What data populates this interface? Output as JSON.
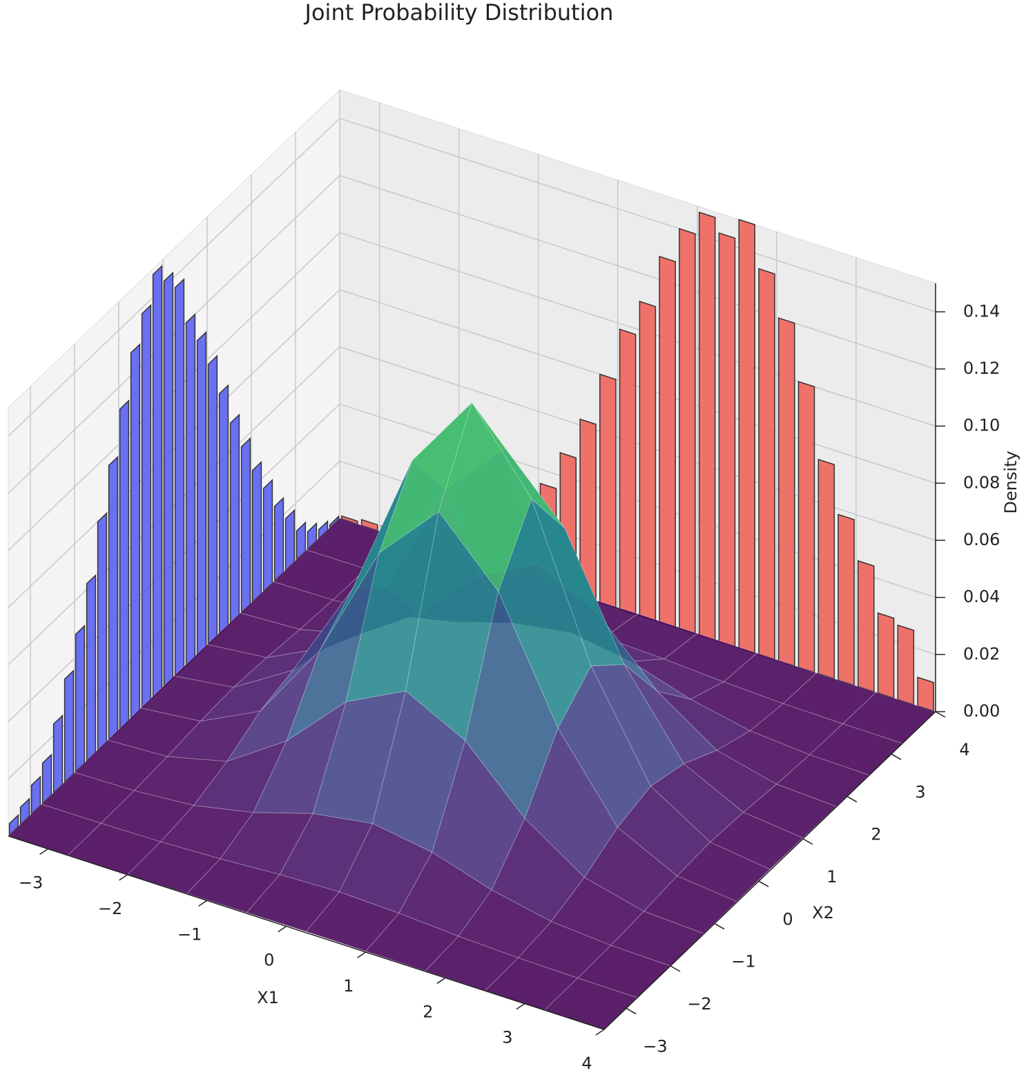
{
  "chart_data": {
    "type": "surface3d",
    "title": "Joint Probability Distribution",
    "xlabel": "X1",
    "ylabel": "X2",
    "zlabel": "Density",
    "xlim": [
      -3.5,
      4
    ],
    "ylim": [
      -3.5,
      4
    ],
    "zlim": [
      0,
      0.15
    ],
    "xticks": [
      {
        "value": -3,
        "label": "−3"
      },
      {
        "value": -2,
        "label": "−2"
      },
      {
        "value": -1,
        "label": "−1"
      },
      0,
      1,
      2,
      3,
      4
    ],
    "yticks": [
      {
        "value": -3,
        "label": "−3"
      },
      {
        "value": -2,
        "label": "−2"
      },
      {
        "value": -1,
        "label": "−1"
      },
      0,
      1,
      2,
      3,
      4
    ],
    "zticks": [
      {
        "value": 0,
        "label": "0.00"
      },
      0.02,
      0.04,
      0.06,
      0.08,
      {
        "value": 0.1,
        "label": "0.10"
      },
      0.12,
      0.14
    ],
    "grid": true,
    "colormap": "viridis",
    "surface": {
      "x": [
        -3.5,
        -2.75,
        -2,
        -1.25,
        -0.5,
        0.25,
        1,
        1.75,
        2.5,
        3.25,
        4
      ],
      "y": [
        -3.5,
        -2.75,
        -2,
        -1.25,
        -0.5,
        0.25,
        1,
        1.75,
        2.5,
        3.25,
        4
      ],
      "z": [
        [
          0,
          0,
          0,
          0.0002,
          0.0003,
          0.0004,
          0.0003,
          0.0002,
          0,
          0,
          0
        ],
        [
          0,
          0.0001,
          0.0004,
          0.0012,
          0.0025,
          0.0032,
          0.0025,
          0.0012,
          0.0004,
          0.0001,
          0
        ],
        [
          0,
          0.0004,
          0.002,
          0.0063,
          0.0127,
          0.016,
          0.0127,
          0.0063,
          0.002,
          0.0004,
          0
        ],
        [
          0.0002,
          0.0012,
          0.0063,
          0.0202,
          0.0407,
          0.0513,
          0.0407,
          0.0202,
          0.0063,
          0.0012,
          0.0002
        ],
        [
          0.0003,
          0.0025,
          0.0127,
          0.0407,
          0.0817,
          0.103,
          0.0817,
          0.0407,
          0.0127,
          0.0025,
          0.0003
        ],
        [
          0.0004,
          0.0032,
          0.016,
          0.0513,
          0.103,
          0.13,
          0.103,
          0.0513,
          0.016,
          0.0032,
          0.0004
        ],
        [
          0.0003,
          0.0025,
          0.0127,
          0.0407,
          0.0817,
          0.103,
          0.0817,
          0.0407,
          0.0127,
          0.0025,
          0.0003
        ],
        [
          0.0002,
          0.0012,
          0.0063,
          0.0202,
          0.0407,
          0.0513,
          0.0407,
          0.0202,
          0.0063,
          0.0012,
          0.0002
        ],
        [
          0,
          0.0004,
          0.002,
          0.0063,
          0.0127,
          0.016,
          0.0127,
          0.0063,
          0.002,
          0.0004,
          0
        ],
        [
          0,
          0.0001,
          0.0004,
          0.0012,
          0.0025,
          0.0032,
          0.0025,
          0.0012,
          0.0004,
          0.0001,
          0
        ],
        [
          0,
          0,
          0,
          0.0002,
          0.0003,
          0.0004,
          0.0003,
          0.0002,
          0,
          0,
          0
        ]
      ]
    },
    "x1_histogram": {
      "color": "#ee645c",
      "bins": [
        -3.5,
        -3.25,
        -3,
        -2.75,
        -2.5,
        -2.25,
        -2,
        -1.75,
        -1.5,
        -1.25,
        -1,
        -0.75,
        -0.5,
        -0.25,
        0,
        0.25,
        0.5,
        0.75,
        1,
        1.25,
        1.5,
        1.75,
        2,
        2.25,
        2.5,
        2.75,
        3,
        3.25,
        3.5,
        3.75,
        4
      ],
      "values": [
        0.001,
        0.002,
        0.002,
        0.004,
        0.005,
        0.008,
        0.01,
        0.012,
        0.018,
        0.024,
        0.035,
        0.048,
        0.062,
        0.08,
        0.098,
        0.11,
        0.128,
        0.14,
        0.148,
        0.143,
        0.15,
        0.135,
        0.12,
        0.1,
        0.075,
        0.058,
        0.044,
        0.028,
        0.026,
        0.01
      ]
    },
    "x2_histogram": {
      "color": "#5a62f2",
      "bins": [
        -3.5,
        -3.25,
        -3,
        -2.75,
        -2.5,
        -2.25,
        -2,
        -1.75,
        -1.5,
        -1.25,
        -1,
        -0.75,
        -0.5,
        -0.25,
        0,
        0.25,
        0.5,
        0.75,
        1,
        1.25,
        1.5,
        1.75,
        2,
        2.25,
        2.5,
        2.75,
        3,
        3.25,
        3.5,
        3.75,
        4
      ],
      "values": [
        0.004,
        0.006,
        0.01,
        0.014,
        0.024,
        0.036,
        0.048,
        0.062,
        0.08,
        0.096,
        0.112,
        0.128,
        0.138,
        0.148,
        0.142,
        0.136,
        0.12,
        0.11,
        0.098,
        0.084,
        0.07,
        0.058,
        0.046,
        0.036,
        0.026,
        0.018,
        0.01,
        0.006,
        0.003,
        0.001
      ]
    }
  }
}
